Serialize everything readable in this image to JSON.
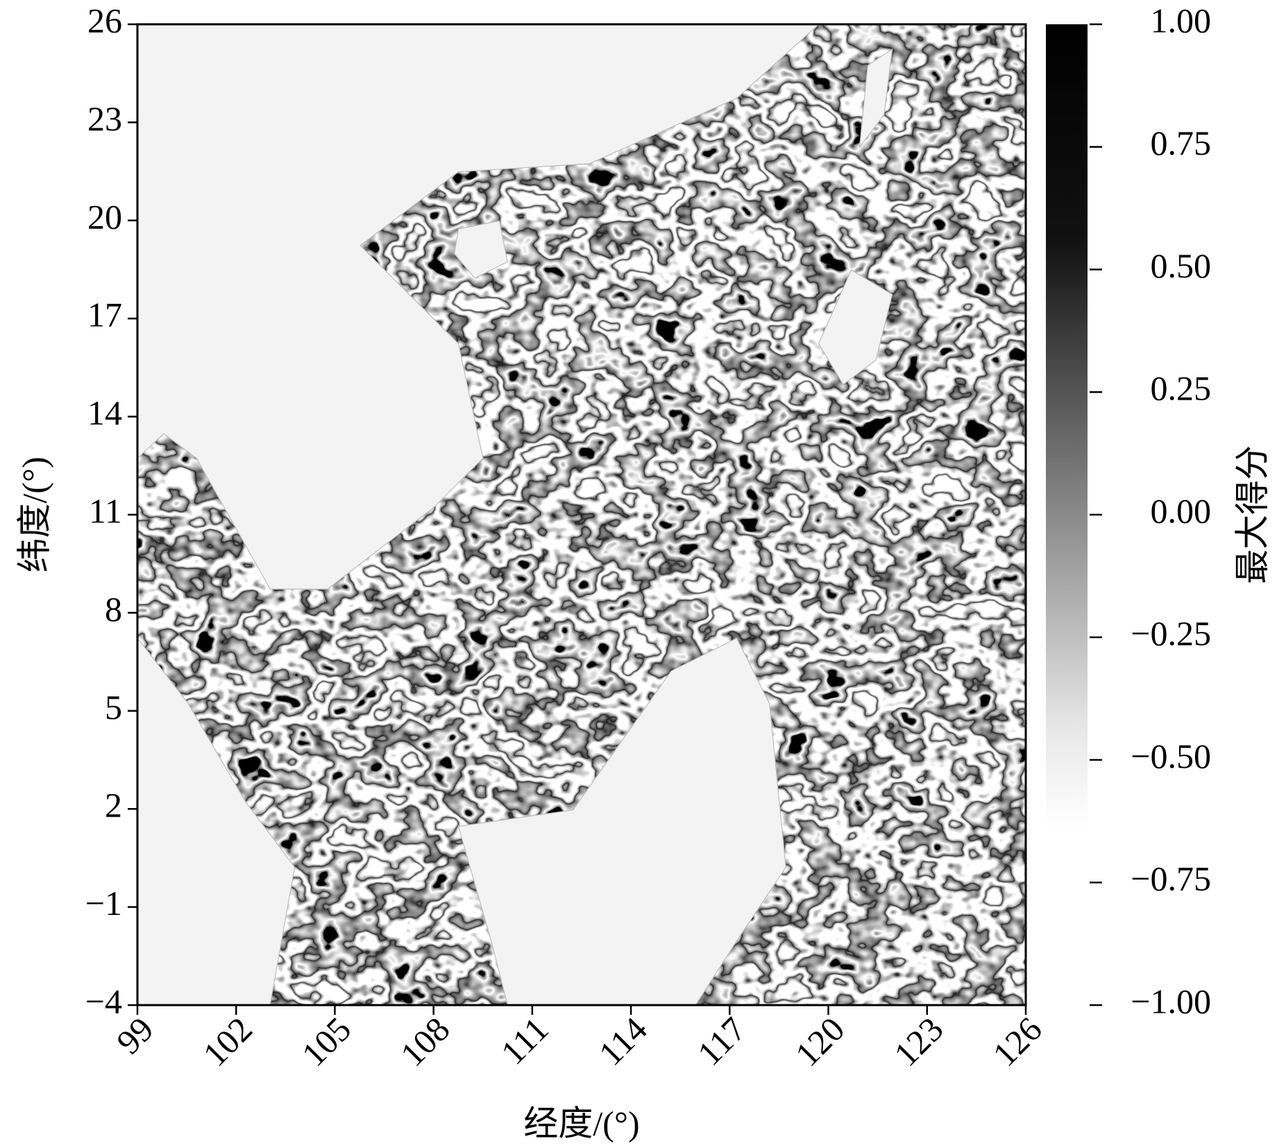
{
  "chart_data": {
    "type": "heatmap",
    "xlabel": "经度/(°)",
    "ylabel": "纬度/(°)",
    "xlim": [
      99,
      126
    ],
    "xticks": [
      99,
      102,
      105,
      108,
      111,
      114,
      117,
      120,
      123,
      126
    ],
    "ylim": [
      -4,
      26
    ],
    "yticks": [
      26,
      23,
      20,
      17,
      14,
      11,
      8,
      5,
      2,
      {
        "value": -1,
        "label": "−1"
      },
      {
        "value": -4,
        "label": "−4"
      }
    ],
    "colorbar": {
      "label": "最大得分",
      "lim": [
        -1,
        1
      ],
      "ticks": [
        {
          "value": 1,
          "label": "1.00"
        },
        {
          "value": 0.75,
          "label": "0.75"
        },
        {
          "value": 0.5,
          "label": "0.50"
        },
        {
          "value": 0.25,
          "label": "0.25"
        },
        {
          "value": 0,
          "label": "0.00"
        },
        {
          "value": -0.25,
          "label": "−0.25"
        },
        {
          "value": -0.5,
          "label": "−0.50"
        },
        {
          "value": -0.75,
          "label": "−0.75"
        },
        {
          "value": -1,
          "label": "−1.00"
        }
      ]
    }
  }
}
